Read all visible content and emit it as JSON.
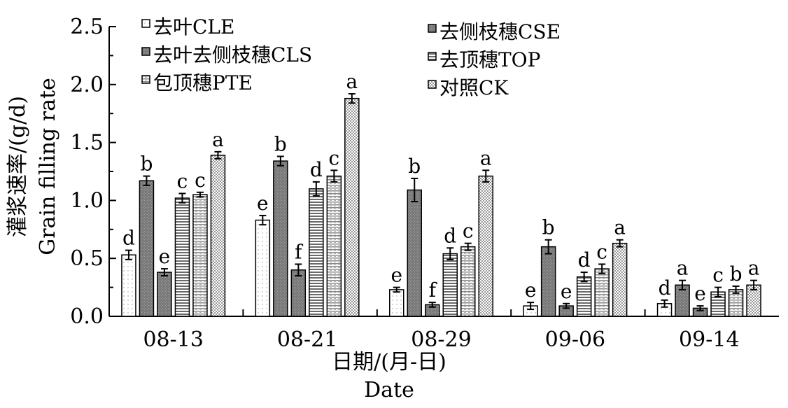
{
  "chart_data": {
    "type": "bar",
    "ylabel_cn": "灌浆速率/(g/d)",
    "ylabel_en": "Grain filling rate",
    "xlabel_cn": "日期/(月-日)",
    "xlabel_en": "Date",
    "ylim": [
      0,
      2.5
    ],
    "yticks": [
      "0.0",
      "0.5",
      "1.0",
      "1.5",
      "2.0",
      "2.5"
    ],
    "categories": [
      "08-13",
      "08-21",
      "08-29",
      "09-06",
      "09-14"
    ],
    "legend_position": "top",
    "series": [
      {
        "name": "去叶CLE",
        "color": "#ffffff",
        "pattern": "dots-light",
        "values": [
          0.53,
          0.83,
          0.23,
          0.09,
          0.11
        ],
        "errors": [
          0.04,
          0.04,
          0.02,
          0.03,
          0.03
        ],
        "letters": [
          "d",
          "e",
          "e",
          "e",
          "d"
        ]
      },
      {
        "name": "去侧枝穗CSE",
        "color": "#808080",
        "pattern": "dark",
        "values": [
          1.17,
          1.34,
          1.09,
          0.6,
          0.27
        ],
        "errors": [
          0.04,
          0.04,
          0.1,
          0.06,
          0.04
        ],
        "letters": [
          "b",
          "b",
          "b",
          "b",
          "a"
        ]
      },
      {
        "name": "去叶去侧枝穗CLS",
        "color": "#808080",
        "pattern": "dark",
        "values": [
          0.38,
          0.4,
          0.1,
          0.09,
          0.07
        ],
        "errors": [
          0.03,
          0.05,
          0.02,
          0.02,
          0.02
        ],
        "letters": [
          "e",
          "f",
          "f",
          "e",
          "e"
        ]
      },
      {
        "name": "去顶穗TOP",
        "color": "#9a9a9a",
        "pattern": "hlines",
        "values": [
          1.02,
          1.1,
          0.54,
          0.34,
          0.21
        ],
        "errors": [
          0.04,
          0.06,
          0.05,
          0.04,
          0.04
        ],
        "letters": [
          "c",
          "d",
          "d",
          "d",
          "c"
        ]
      },
      {
        "name": "包顶穗PTE",
        "color": "#cfcfcf",
        "pattern": "hlines-light",
        "values": [
          1.05,
          1.21,
          0.6,
          0.41,
          0.23
        ],
        "errors": [
          0.02,
          0.05,
          0.03,
          0.04,
          0.03
        ],
        "letters": [
          "c",
          "c",
          "c",
          "c",
          "b"
        ]
      },
      {
        "name": "对照CK",
        "color": "#e0e0e0",
        "pattern": "dots",
        "values": [
          1.39,
          1.88,
          1.21,
          0.63,
          0.27
        ],
        "errors": [
          0.03,
          0.04,
          0.05,
          0.03,
          0.04
        ],
        "letters": [
          "a",
          "a",
          "a",
          "a",
          "a"
        ]
      }
    ]
  }
}
